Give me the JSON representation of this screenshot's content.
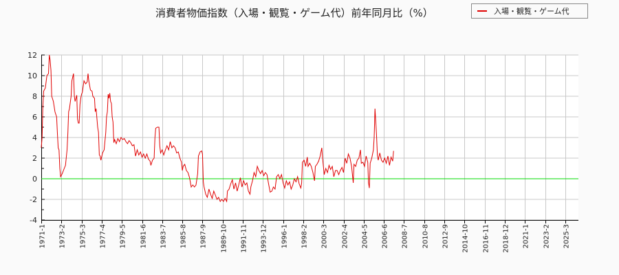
{
  "title": "消費者物価指数（入場・観覧・ゲーム代）前年同月比（%）",
  "legend": {
    "label": "入場・観覧・ゲーム代",
    "color": "#e00000"
  },
  "chart_data": {
    "type": "line",
    "title": "消費者物価指数（入場・観覧・ゲーム代）前年同月比（%）",
    "xlabel": "",
    "ylabel": "",
    "ylim": [
      -4,
      12
    ],
    "yticks": [
      -4,
      -2,
      0,
      2,
      4,
      6,
      8,
      10,
      12
    ],
    "grid": true,
    "legend_position": "top-right",
    "zero_line_color": "#00dd00",
    "x_tick_labels": [
      "1971-1",
      "1973-2",
      "1975-3",
      "1977-4",
      "1979-5",
      "1981-6",
      "1983-7",
      "1985-8",
      "1987-9",
      "1989-10",
      "1991-11",
      "1993-12",
      "1996-1",
      "1998-2",
      "2000-3",
      "2002-4",
      "2004-5",
      "2006-6",
      "2008-7",
      "2010-8",
      "2012-9",
      "2014-10",
      "2016-11",
      "2018-12",
      "2021-1",
      "2023-2",
      "2025-3"
    ],
    "series": [
      {
        "name": "入場・観覧・ゲーム代",
        "color": "#e00000",
        "x_unit": "months since 1971-01",
        "points": [
          [
            0,
            3.0
          ],
          [
            1,
            4.0
          ],
          [
            2,
            7.0
          ],
          [
            3,
            8.5
          ],
          [
            5,
            8.8
          ],
          [
            7,
            10.0
          ],
          [
            9,
            10.2
          ],
          [
            10,
            12.0
          ],
          [
            11,
            11.5
          ],
          [
            12,
            10.5
          ],
          [
            13,
            8.0
          ],
          [
            15,
            7.5
          ],
          [
            17,
            6.5
          ],
          [
            19,
            6.0
          ],
          [
            20,
            4.5
          ],
          [
            21,
            3.0
          ],
          [
            22,
            2.8
          ],
          [
            23,
            1.0
          ],
          [
            24,
            0.2
          ],
          [
            26,
            0.5
          ],
          [
            28,
            0.9
          ],
          [
            30,
            1.3
          ],
          [
            32,
            2.8
          ],
          [
            33,
            4.5
          ],
          [
            34,
            6.5
          ],
          [
            35,
            6.8
          ],
          [
            37,
            8.0
          ],
          [
            38,
            9.5
          ],
          [
            40,
            10.2
          ],
          [
            41,
            8.0
          ],
          [
            42,
            7.5
          ],
          [
            43,
            7.8
          ],
          [
            44,
            8.1
          ],
          [
            45,
            5.8
          ],
          [
            46,
            5.4
          ],
          [
            47,
            5.4
          ],
          [
            48,
            7.2
          ],
          [
            49,
            7.8
          ],
          [
            50,
            8.2
          ],
          [
            51,
            8.4
          ],
          [
            53,
            9.5
          ],
          [
            55,
            9.2
          ],
          [
            57,
            9.4
          ],
          [
            58,
            10.2
          ],
          [
            59,
            9.5
          ],
          [
            61,
            8.6
          ],
          [
            63,
            8.5
          ],
          [
            64,
            8.0
          ],
          [
            66,
            7.8
          ],
          [
            67,
            6.5
          ],
          [
            68,
            6.8
          ],
          [
            70,
            5.0
          ],
          [
            71,
            4.5
          ],
          [
            72,
            2.3
          ],
          [
            73,
            2.2
          ],
          [
            74,
            1.8
          ],
          [
            76,
            2.5
          ],
          [
            78,
            2.8
          ],
          [
            80,
            4.5
          ],
          [
            81,
            6.0
          ],
          [
            82,
            6.5
          ],
          [
            83,
            8.2
          ],
          [
            84,
            7.8
          ],
          [
            85,
            8.3
          ],
          [
            86,
            7.5
          ],
          [
            87,
            7.3
          ],
          [
            88,
            6.0
          ],
          [
            89,
            5.5
          ],
          [
            90,
            3.5
          ],
          [
            91,
            3.8
          ],
          [
            93,
            3.4
          ],
          [
            95,
            3.9
          ],
          [
            97,
            3.6
          ],
          [
            99,
            4.0
          ],
          [
            101,
            3.8
          ],
          [
            103,
            3.9
          ],
          [
            105,
            3.6
          ],
          [
            107,
            3.4
          ],
          [
            109,
            3.7
          ],
          [
            111,
            3.5
          ],
          [
            113,
            3.2
          ],
          [
            115,
            3.3
          ],
          [
            117,
            2.2
          ],
          [
            119,
            2.8
          ],
          [
            121,
            2.3
          ],
          [
            123,
            2.6
          ],
          [
            125,
            2.1
          ],
          [
            127,
            2.4
          ],
          [
            129,
            2.0
          ],
          [
            131,
            2.4
          ],
          [
            133,
            1.9
          ],
          [
            135,
            1.7
          ],
          [
            136,
            1.3
          ],
          [
            138,
            1.8
          ],
          [
            140,
            2.0
          ],
          [
            141,
            4.0
          ],
          [
            142,
            4.9
          ],
          [
            144,
            5.0
          ],
          [
            146,
            5.0
          ],
          [
            147,
            3.2
          ],
          [
            148,
            2.5
          ],
          [
            150,
            2.8
          ],
          [
            152,
            2.3
          ],
          [
            154,
            2.8
          ],
          [
            156,
            3.2
          ],
          [
            158,
            2.8
          ],
          [
            160,
            3.6
          ],
          [
            162,
            3.0
          ],
          [
            164,
            3.2
          ],
          [
            166,
            3.0
          ],
          [
            168,
            2.5
          ],
          [
            170,
            2.6
          ],
          [
            172,
            2.0
          ],
          [
            174,
            1.6
          ],
          [
            175,
            0.8
          ],
          [
            176,
            1.2
          ],
          [
            178,
            1.4
          ],
          [
            180,
            0.8
          ],
          [
            182,
            0.6
          ],
          [
            184,
            0.1
          ],
          [
            186,
            -0.8
          ],
          [
            188,
            -0.6
          ],
          [
            190,
            -0.8
          ],
          [
            192,
            -0.6
          ],
          [
            194,
            0.5
          ],
          [
            195,
            2.2
          ],
          [
            197,
            2.6
          ],
          [
            199,
            2.7
          ],
          [
            200,
            2.4
          ],
          [
            201,
            -0.3
          ],
          [
            202,
            -0.8
          ],
          [
            204,
            -1.5
          ],
          [
            206,
            -1.8
          ],
          [
            208,
            -1.0
          ],
          [
            210,
            -1.5
          ],
          [
            212,
            -1.9
          ],
          [
            214,
            -1.2
          ],
          [
            216,
            -1.6
          ],
          [
            218,
            -2.0
          ],
          [
            220,
            -1.8
          ],
          [
            222,
            -2.2
          ],
          [
            224,
            -2.0
          ],
          [
            226,
            -2.2
          ],
          [
            228,
            -1.9
          ],
          [
            230,
            -2.2
          ],
          [
            231,
            -1.2
          ],
          [
            233,
            -1.0
          ],
          [
            235,
            -0.5
          ],
          [
            237,
            -0.1
          ],
          [
            239,
            -1.0
          ],
          [
            241,
            -0.4
          ],
          [
            243,
            -1.2
          ],
          [
            245,
            -0.6
          ],
          [
            247,
            0.1
          ],
          [
            249,
            -0.8
          ],
          [
            251,
            -0.2
          ],
          [
            253,
            -0.6
          ],
          [
            255,
            -0.4
          ],
          [
            257,
            -1.2
          ],
          [
            259,
            -1.5
          ],
          [
            260,
            -0.8
          ],
          [
            262,
            -0.2
          ],
          [
            264,
            0.6
          ],
          [
            266,
            0.2
          ],
          [
            268,
            1.2
          ],
          [
            270,
            0.8
          ],
          [
            272,
            0.5
          ],
          [
            274,
            0.8
          ],
          [
            276,
            0.3
          ],
          [
            278,
            0.6
          ],
          [
            280,
            0.4
          ],
          [
            282,
            -0.5
          ],
          [
            284,
            -1.3
          ],
          [
            286,
            -1.2
          ],
          [
            288,
            -0.8
          ],
          [
            290,
            -1.0
          ],
          [
            292,
            0.2
          ],
          [
            294,
            0.4
          ],
          [
            296,
            0.0
          ],
          [
            298,
            0.4
          ],
          [
            300,
            -0.4
          ],
          [
            302,
            -0.9
          ],
          [
            304,
            -0.2
          ],
          [
            306,
            -0.6
          ],
          [
            308,
            -0.3
          ],
          [
            310,
            -1.0
          ],
          [
            312,
            -0.6
          ],
          [
            314,
            0.0
          ],
          [
            316,
            -0.3
          ],
          [
            318,
            0.2
          ],
          [
            320,
            -0.5
          ],
          [
            322,
            -0.9
          ],
          [
            323,
            -0.4
          ],
          [
            324,
            1.6
          ],
          [
            326,
            1.8
          ],
          [
            328,
            1.2
          ],
          [
            330,
            2.1
          ],
          [
            331,
            1.2
          ],
          [
            333,
            1.5
          ],
          [
            335,
            1.2
          ],
          [
            337,
            0.6
          ],
          [
            339,
            -0.2
          ],
          [
            340,
            1.2
          ],
          [
            342,
            1.4
          ],
          [
            344,
            1.7
          ],
          [
            346,
            2.2
          ],
          [
            348,
            3.0
          ],
          [
            349,
            2.0
          ],
          [
            351,
            0.4
          ],
          [
            353,
            1.0
          ],
          [
            355,
            0.6
          ],
          [
            357,
            1.3
          ],
          [
            359,
            0.9
          ],
          [
            361,
            1.2
          ],
          [
            363,
            0.2
          ],
          [
            365,
            0.8
          ],
          [
            367,
            0.8
          ],
          [
            369,
            0.4
          ],
          [
            371,
            0.8
          ],
          [
            373,
            1.1
          ],
          [
            375,
            0.6
          ],
          [
            377,
            2.0
          ],
          [
            379,
            1.5
          ],
          [
            381,
            2.4
          ],
          [
            383,
            2.0
          ],
          [
            385,
            1.2
          ],
          [
            387,
            -0.4
          ],
          [
            388,
            1.4
          ],
          [
            390,
            1.2
          ],
          [
            392,
            1.8
          ],
          [
            394,
            2.0
          ],
          [
            396,
            2.8
          ],
          [
            397,
            1.5
          ],
          [
            399,
            1.6
          ],
          [
            401,
            1.2
          ],
          [
            403,
            2.2
          ],
          [
            405,
            1.6
          ],
          [
            406,
            -0.4
          ],
          [
            407,
            -0.9
          ],
          [
            408,
            1.5
          ],
          [
            410,
            2.0
          ],
          [
            412,
            2.8
          ],
          [
            413,
            4.0
          ],
          [
            414,
            6.8
          ],
          [
            415,
            5.5
          ],
          [
            416,
            4.0
          ],
          [
            417,
            2.3
          ],
          [
            418,
            1.8
          ],
          [
            420,
            2.5
          ],
          [
            422,
            1.8
          ],
          [
            424,
            1.6
          ],
          [
            426,
            2.0
          ],
          [
            428,
            1.5
          ],
          [
            430,
            2.2
          ],
          [
            432,
            1.3
          ],
          [
            434,
            2.1
          ],
          [
            436,
            1.7
          ],
          [
            437,
            2.7
          ]
        ]
      }
    ]
  }
}
